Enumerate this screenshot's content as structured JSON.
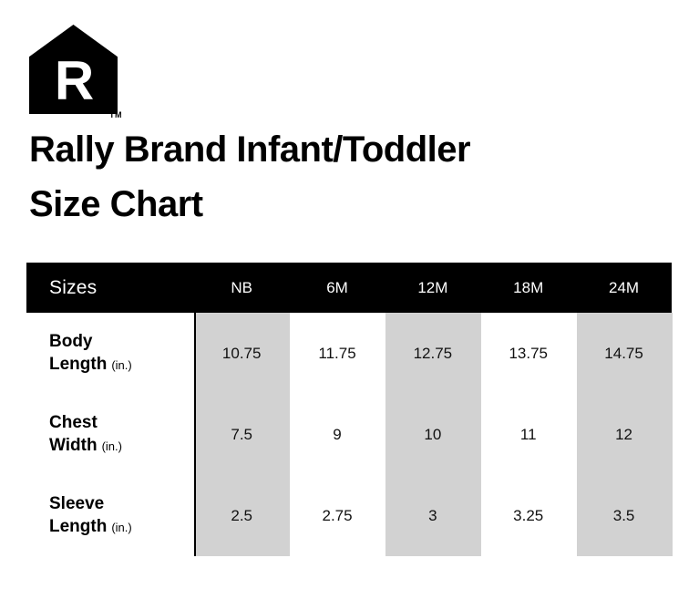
{
  "logo": {
    "letter": "R",
    "trademark": "TM"
  },
  "title_lines": [
    "Rally Brand Infant/Toddler",
    "Size Chart"
  ],
  "table": {
    "header": {
      "label": "Sizes",
      "columns": [
        "NB",
        "6M",
        "12M",
        "18M",
        "24M"
      ]
    },
    "rows": [
      {
        "label_line1": "Body",
        "label_line2": "Length",
        "unit": "(in.)",
        "values": [
          "10.75",
          "11.75",
          "12.75",
          "13.75",
          "14.75"
        ]
      },
      {
        "label_line1": "Chest",
        "label_line2": "Width",
        "unit": "(in.)",
        "values": [
          "7.5",
          "9",
          "10",
          "11",
          "12"
        ]
      },
      {
        "label_line1": "Sleeve",
        "label_line2": "Length",
        "unit": "(in.)",
        "values": [
          "2.5",
          "2.75",
          "3",
          "3.25",
          "3.5"
        ]
      }
    ]
  },
  "colors": {
    "header_bg": "#000000",
    "header_text": "#ffffff",
    "stripe": "#d2d2d2",
    "text": "#000000"
  },
  "chart_data": {
    "type": "table",
    "title": "Rally Brand Infant/Toddler Size Chart",
    "columns": [
      "Sizes",
      "NB",
      "6M",
      "12M",
      "18M",
      "24M"
    ],
    "rows": [
      {
        "label": "Body Length (in.)",
        "values": [
          10.75,
          11.75,
          12.75,
          13.75,
          14.75
        ]
      },
      {
        "label": "Chest Width (in.)",
        "values": [
          7.5,
          9,
          10,
          11,
          12
        ]
      },
      {
        "label": "Sleeve Length (in.)",
        "values": [
          2.5,
          2.75,
          3,
          3.25,
          3.5
        ]
      }
    ],
    "layout_hints": {
      "striped_columns": [
        "NB",
        "12M",
        "24M"
      ],
      "header_style": "black-bar"
    }
  }
}
